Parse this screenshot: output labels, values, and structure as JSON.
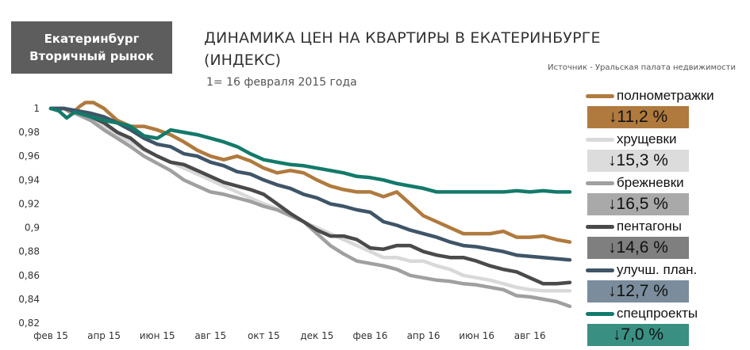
{
  "badge": {
    "line1": "Екатеринбург",
    "line2": "Вторичный рынок"
  },
  "header": {
    "title_line1": "ДИНАМИКА ЦЕН НА КВАРТИРЫ В ЕКАТЕРИНБУРГЕ",
    "title_line2": "(ИНДЕКС)",
    "subtitle": "1= 16 февраля 2015 года",
    "source": "Источник - Уральская палата недвижимости"
  },
  "legend": [
    {
      "name": "полнометражки",
      "change": "↓11,2 %",
      "color": "#b07a3e",
      "box_color": "#b07a3e"
    },
    {
      "name": "хрущевки",
      "change": "↓15,3 %",
      "color": "#d9d9d9",
      "box_color": "#dcdcdc"
    },
    {
      "name": "брежневки",
      "change": "↓16,5 %",
      "color": "#a0a0a0",
      "box_color": "#a9a9a9"
    },
    {
      "name": "пентагоны",
      "change": "↓14,6 %",
      "color": "#4a4a4a",
      "box_color": "#7f7f7f"
    },
    {
      "name": "улучш. план.",
      "change": "↓12,7 %",
      "color": "#3f5568",
      "box_color": "#7b8d9c"
    },
    {
      "name": "спецпроекты",
      "change": "↓7,0 %",
      "color": "#137a6a",
      "box_color": "#3a8f83"
    }
  ],
  "chart_data": {
    "type": "line",
    "title": "ДИНАМИКА ЦЕН НА КВАРТИРЫ В ЕКАТЕРИНБУРГЕ (ИНДЕКС)",
    "subtitle": "1= 16 февраля 2015 года",
    "x_ticks": [
      "фев 15",
      "апр 15",
      "июн 15",
      "авг 15",
      "окт 15",
      "дек 15",
      "фев 16",
      "апр 16",
      "июн 16",
      "авг 16"
    ],
    "y_ticks": [
      "0,82",
      "0,84",
      "0,86",
      "0,88",
      "0,9",
      "0,92",
      "0,94",
      "0,96",
      "0,98",
      "1"
    ],
    "ylim": [
      0.82,
      1.0
    ],
    "x_range_months": [
      0,
      19.5
    ],
    "grid": false,
    "series": [
      {
        "name": "полнометражки",
        "color": "#b07a3e",
        "points": [
          [
            0,
            1.0
          ],
          [
            0.5,
            1.0
          ],
          [
            0.8,
            0.996
          ],
          [
            1.1,
            1.002
          ],
          [
            1.3,
            1.005
          ],
          [
            1.6,
            1.005
          ],
          [
            2,
            1.0
          ],
          [
            2.5,
            0.99
          ],
          [
            3,
            0.985
          ],
          [
            3.5,
            0.985
          ],
          [
            4,
            0.982
          ],
          [
            4.5,
            0.978
          ],
          [
            5,
            0.972
          ],
          [
            5.5,
            0.965
          ],
          [
            6,
            0.96
          ],
          [
            6.5,
            0.957
          ],
          [
            7,
            0.96
          ],
          [
            7.5,
            0.956
          ],
          [
            8,
            0.95
          ],
          [
            8.5,
            0.946
          ],
          [
            9,
            0.948
          ],
          [
            9.5,
            0.946
          ],
          [
            10,
            0.94
          ],
          [
            10.5,
            0.935
          ],
          [
            11,
            0.932
          ],
          [
            11.5,
            0.93
          ],
          [
            12,
            0.93
          ],
          [
            12.5,
            0.926
          ],
          [
            13,
            0.93
          ],
          [
            13.5,
            0.92
          ],
          [
            14,
            0.91
          ],
          [
            14.5,
            0.905
          ],
          [
            15,
            0.9
          ],
          [
            15.5,
            0.895
          ],
          [
            16,
            0.895
          ],
          [
            16.5,
            0.895
          ],
          [
            17,
            0.897
          ],
          [
            17.5,
            0.892
          ],
          [
            18,
            0.892
          ],
          [
            18.5,
            0.893
          ],
          [
            19,
            0.89
          ],
          [
            19.5,
            0.888
          ]
        ]
      },
      {
        "name": "хрущевки",
        "color": "#d9d9d9",
        "points": [
          [
            0,
            1.0
          ],
          [
            0.5,
            1.0
          ],
          [
            1,
            0.998
          ],
          [
            1.5,
            0.99
          ],
          [
            2,
            0.985
          ],
          [
            2.5,
            0.978
          ],
          [
            3,
            0.972
          ],
          [
            3.5,
            0.965
          ],
          [
            4,
            0.96
          ],
          [
            4.5,
            0.955
          ],
          [
            5,
            0.95
          ],
          [
            5.5,
            0.945
          ],
          [
            6,
            0.94
          ],
          [
            6.5,
            0.935
          ],
          [
            7,
            0.93
          ],
          [
            7.5,
            0.925
          ],
          [
            8,
            0.92
          ],
          [
            8.5,
            0.916
          ],
          [
            9,
            0.91
          ],
          [
            9.5,
            0.905
          ],
          [
            10,
            0.9
          ],
          [
            10.5,
            0.895
          ],
          [
            11,
            0.89
          ],
          [
            11.5,
            0.885
          ],
          [
            12,
            0.88
          ],
          [
            12.5,
            0.875
          ],
          [
            13,
            0.875
          ],
          [
            13.5,
            0.872
          ],
          [
            14,
            0.872
          ],
          [
            14.5,
            0.868
          ],
          [
            15,
            0.865
          ],
          [
            15.5,
            0.86
          ],
          [
            16,
            0.858
          ],
          [
            16.5,
            0.856
          ],
          [
            17,
            0.853
          ],
          [
            17.5,
            0.85
          ],
          [
            18,
            0.848
          ],
          [
            18.5,
            0.847
          ],
          [
            19,
            0.847
          ],
          [
            19.5,
            0.847
          ]
        ]
      },
      {
        "name": "брежневки",
        "color": "#a0a0a0",
        "points": [
          [
            0,
            1.0
          ],
          [
            0.5,
            1.0
          ],
          [
            1,
            0.995
          ],
          [
            1.5,
            0.99
          ],
          [
            2,
            0.982
          ],
          [
            2.5,
            0.975
          ],
          [
            3,
            0.968
          ],
          [
            3.5,
            0.96
          ],
          [
            4,
            0.954
          ],
          [
            4.5,
            0.948
          ],
          [
            5,
            0.94
          ],
          [
            5.5,
            0.935
          ],
          [
            6,
            0.93
          ],
          [
            6.5,
            0.928
          ],
          [
            7,
            0.925
          ],
          [
            7.5,
            0.922
          ],
          [
            8,
            0.918
          ],
          [
            8.5,
            0.915
          ],
          [
            9,
            0.91
          ],
          [
            9.5,
            0.905
          ],
          [
            10,
            0.895
          ],
          [
            10.5,
            0.885
          ],
          [
            11,
            0.878
          ],
          [
            11.5,
            0.872
          ],
          [
            12,
            0.87
          ],
          [
            12.5,
            0.868
          ],
          [
            13,
            0.865
          ],
          [
            13.5,
            0.86
          ],
          [
            14,
            0.858
          ],
          [
            14.5,
            0.856
          ],
          [
            15,
            0.855
          ],
          [
            15.5,
            0.853
          ],
          [
            16,
            0.852
          ],
          [
            16.5,
            0.85
          ],
          [
            17,
            0.848
          ],
          [
            17.5,
            0.843
          ],
          [
            18,
            0.842
          ],
          [
            18.5,
            0.84
          ],
          [
            19,
            0.838
          ],
          [
            19.5,
            0.834
          ]
        ]
      },
      {
        "name": "пентагоны",
        "color": "#4a4a4a",
        "points": [
          [
            0,
            1.0
          ],
          [
            0.5,
            1.0
          ],
          [
            1,
            0.997
          ],
          [
            1.5,
            0.993
          ],
          [
            2,
            0.988
          ],
          [
            2.5,
            0.98
          ],
          [
            3,
            0.975
          ],
          [
            3.5,
            0.966
          ],
          [
            4,
            0.96
          ],
          [
            4.5,
            0.955
          ],
          [
            5,
            0.953
          ],
          [
            5.5,
            0.948
          ],
          [
            6,
            0.943
          ],
          [
            6.5,
            0.938
          ],
          [
            7,
            0.935
          ],
          [
            7.5,
            0.932
          ],
          [
            8,
            0.928
          ],
          [
            8.5,
            0.92
          ],
          [
            9,
            0.912
          ],
          [
            9.5,
            0.905
          ],
          [
            10,
            0.898
          ],
          [
            10.5,
            0.893
          ],
          [
            11,
            0.893
          ],
          [
            11.5,
            0.89
          ],
          [
            12,
            0.883
          ],
          [
            12.5,
            0.882
          ],
          [
            13,
            0.885
          ],
          [
            13.5,
            0.885
          ],
          [
            14,
            0.88
          ],
          [
            14.5,
            0.877
          ],
          [
            15,
            0.875
          ],
          [
            15.5,
            0.875
          ],
          [
            16,
            0.872
          ],
          [
            16.5,
            0.868
          ],
          [
            17,
            0.865
          ],
          [
            17.5,
            0.863
          ],
          [
            18,
            0.858
          ],
          [
            18.5,
            0.853
          ],
          [
            19,
            0.853
          ],
          [
            19.5,
            0.854
          ]
        ]
      },
      {
        "name": "улучш. план.",
        "color": "#3f5568",
        "points": [
          [
            0,
            1.0
          ],
          [
            0.5,
            1.0
          ],
          [
            1,
            0.998
          ],
          [
            1.5,
            0.996
          ],
          [
            2,
            0.993
          ],
          [
            2.5,
            0.988
          ],
          [
            3,
            0.982
          ],
          [
            3.5,
            0.975
          ],
          [
            4,
            0.97
          ],
          [
            4.5,
            0.968
          ],
          [
            5,
            0.962
          ],
          [
            5.5,
            0.96
          ],
          [
            6,
            0.955
          ],
          [
            6.5,
            0.952
          ],
          [
            7,
            0.947
          ],
          [
            7.5,
            0.945
          ],
          [
            8,
            0.94
          ],
          [
            8.5,
            0.936
          ],
          [
            9,
            0.933
          ],
          [
            9.5,
            0.928
          ],
          [
            10,
            0.925
          ],
          [
            10.5,
            0.92
          ],
          [
            11,
            0.918
          ],
          [
            11.5,
            0.915
          ],
          [
            12,
            0.913
          ],
          [
            12.5,
            0.905
          ],
          [
            13,
            0.902
          ],
          [
            13.5,
            0.898
          ],
          [
            14,
            0.895
          ],
          [
            14.5,
            0.892
          ],
          [
            15,
            0.888
          ],
          [
            15.5,
            0.885
          ],
          [
            16,
            0.884
          ],
          [
            16.5,
            0.882
          ],
          [
            17,
            0.88
          ],
          [
            17.5,
            0.877
          ],
          [
            18,
            0.876
          ],
          [
            18.5,
            0.875
          ],
          [
            19,
            0.874
          ],
          [
            19.5,
            0.873
          ]
        ]
      },
      {
        "name": "спецпроекты",
        "color": "#137a6a",
        "points": [
          [
            0,
            1.0
          ],
          [
            0.3,
            0.998
          ],
          [
            0.6,
            0.992
          ],
          [
            0.9,
            0.997
          ],
          [
            1.2,
            0.995
          ],
          [
            1.5,
            0.993
          ],
          [
            2,
            0.99
          ],
          [
            2.5,
            0.988
          ],
          [
            3,
            0.985
          ],
          [
            3.5,
            0.977
          ],
          [
            4,
            0.975
          ],
          [
            4.5,
            0.982
          ],
          [
            5,
            0.98
          ],
          [
            5.5,
            0.978
          ],
          [
            6,
            0.975
          ],
          [
            6.5,
            0.972
          ],
          [
            7,
            0.968
          ],
          [
            7.5,
            0.962
          ],
          [
            8,
            0.957
          ],
          [
            8.5,
            0.955
          ],
          [
            9,
            0.953
          ],
          [
            9.5,
            0.952
          ],
          [
            10,
            0.95
          ],
          [
            10.5,
            0.948
          ],
          [
            11,
            0.946
          ],
          [
            11.5,
            0.943
          ],
          [
            12,
            0.942
          ],
          [
            12.5,
            0.94
          ],
          [
            13,
            0.937
          ],
          [
            13.5,
            0.935
          ],
          [
            14,
            0.933
          ],
          [
            14.5,
            0.93
          ],
          [
            15,
            0.93
          ],
          [
            15.5,
            0.93
          ],
          [
            16,
            0.93
          ],
          [
            16.5,
            0.93
          ],
          [
            17,
            0.93
          ],
          [
            17.5,
            0.931
          ],
          [
            18,
            0.93
          ],
          [
            18.5,
            0.931
          ],
          [
            19,
            0.93
          ],
          [
            19.5,
            0.93
          ]
        ]
      }
    ]
  }
}
